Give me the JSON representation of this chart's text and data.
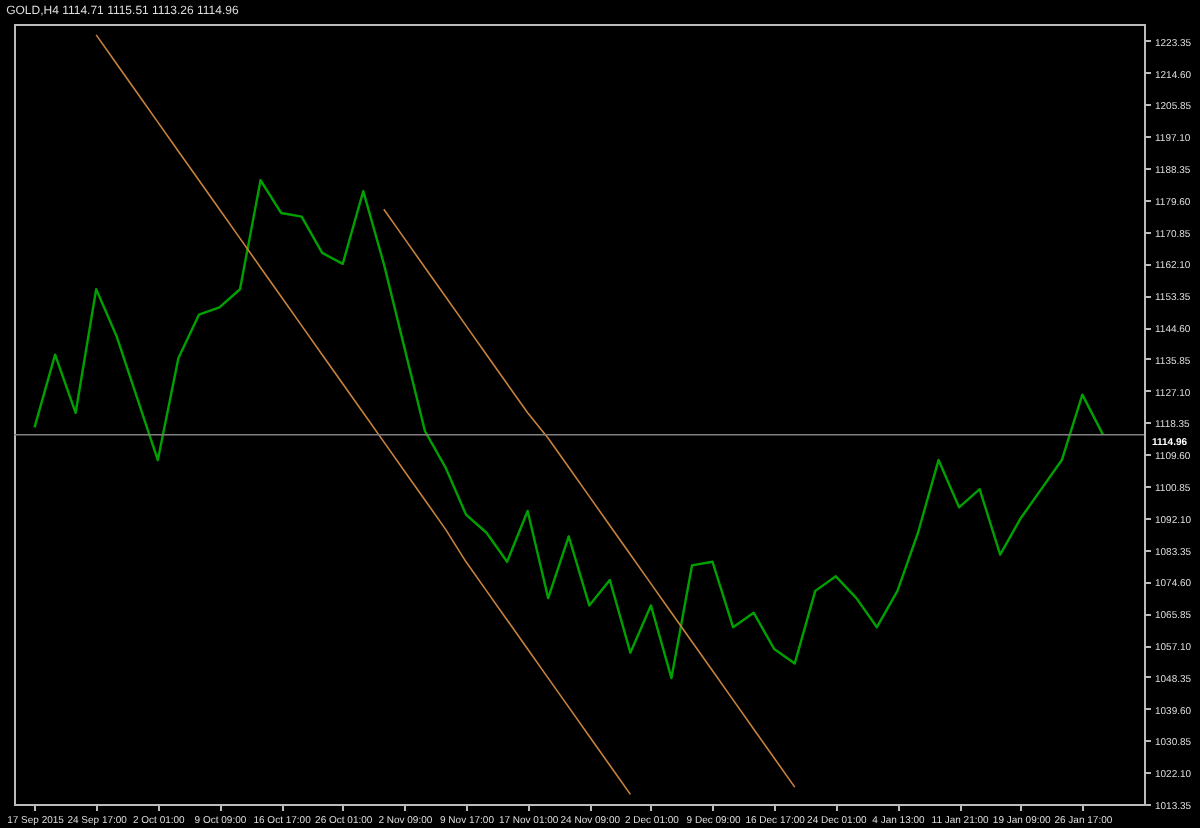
{
  "chart_data": {
    "type": "line",
    "title": "GOLD,H4 1114.71 1115.51 1113.26 1114.96",
    "categories": [
      "17 Sep 2015",
      null,
      null,
      "24 Sep 17:00",
      null,
      null,
      "2 Oct 01:00",
      null,
      null,
      "9 Oct 09:00",
      null,
      null,
      "16 Oct 17:00",
      null,
      null,
      "26 Oct 01:00",
      null,
      null,
      "2 Nov 09:00",
      null,
      null,
      "9 Nov 17:00",
      null,
      null,
      "17 Nov 01:00",
      null,
      null,
      "24 Nov 09:00",
      null,
      null,
      "2 Dec 01:00",
      null,
      null,
      "9 Dec 09:00",
      null,
      null,
      "16 Dec 17:00",
      null,
      null,
      "24 Dec 01:00",
      null,
      null,
      "4 Jan 13:00",
      null,
      null,
      "11 Jan 21:00",
      null,
      null,
      "19 Jan 09:00",
      null,
      null,
      "26 Jan 17:00",
      null,
      null
    ],
    "series": [
      {
        "color": "#00a000",
        "values": [
          1117,
          1137,
          1121,
          1155,
          1142,
          1125,
          1108,
          1136,
          1148,
          1150,
          1155,
          1185,
          1176,
          1175,
          1165,
          1162,
          1182,
          1162,
          1139,
          1116,
          1106,
          1093,
          1088,
          1080,
          1094,
          1070,
          1087,
          1068,
          1075,
          1055,
          1068,
          1048,
          1079,
          1080,
          1062,
          1066,
          1056,
          1052,
          1072,
          1076,
          1070,
          1062,
          1072,
          1088,
          1108,
          1095,
          1100,
          1082,
          1092,
          1100,
          1108,
          1126,
          1115,
          null
        ]
      },
      {
        "color": "#c8823c",
        "values": [
          null,
          null,
          null,
          1225,
          1217,
          1209,
          1201,
          1193,
          1185,
          1177,
          1169,
          1161,
          1153,
          1145,
          1137,
          1129,
          1121,
          1113,
          1105,
          1097,
          1089,
          1080,
          1072,
          1064,
          1056,
          1048,
          1040,
          1032,
          1024,
          1016,
          null,
          null,
          null,
          null,
          null,
          null,
          null,
          null,
          null,
          null,
          null,
          null,
          null,
          null,
          null,
          null,
          null,
          null,
          null,
          null,
          null,
          null,
          null,
          null
        ]
      },
      {
        "color": "#c8823c",
        "values": [
          null,
          null,
          null,
          null,
          null,
          null,
          null,
          null,
          null,
          null,
          null,
          null,
          null,
          null,
          null,
          null,
          null,
          1177,
          1169,
          1161,
          1153,
          1145,
          1137,
          1129,
          1121,
          1114,
          1106,
          1098,
          1090,
          1082,
          1074,
          1066,
          1058,
          1050,
          1042,
          1034,
          1026,
          1018,
          null,
          null,
          null,
          null,
          null,
          null,
          null,
          null,
          null,
          null,
          null,
          null,
          null,
          null,
          null,
          null
        ]
      }
    ],
    "ylim": [
      1013.35,
      1228
    ],
    "yticks": [
      1223.35,
      {
        "value": 1214.6,
        "label": "1214.60"
      },
      1205.85,
      {
        "value": 1197.1,
        "label": "1197.10"
      },
      1188.35,
      {
        "value": 1179.6,
        "label": "1179.60"
      },
      1170.85,
      {
        "value": 1162.1,
        "label": "1162.10"
      },
      1153.35,
      {
        "value": 1144.6,
        "label": "1144.60"
      },
      1135.85,
      {
        "value": 1127.1,
        "label": "1127.10"
      },
      1118.35,
      {
        "value": 1109.6,
        "label": "1109.60"
      },
      1100.85,
      {
        "value": 1092.1,
        "label": "1092.10"
      },
      1083.35,
      {
        "value": 1074.6,
        "label": "1074.60"
      },
      1065.85,
      {
        "value": 1057.1,
        "label": "1057.10"
      },
      1048.35,
      {
        "value": 1039.6,
        "label": "1039.60"
      },
      1030.85,
      {
        "value": 1022.1,
        "label": "1022.10"
      },
      1013.35
    ],
    "ref_lines": [
      {
        "axis": "y",
        "value": 1114.96,
        "label": "1114.96",
        "color": "#808080"
      }
    ],
    "grid": false
  }
}
